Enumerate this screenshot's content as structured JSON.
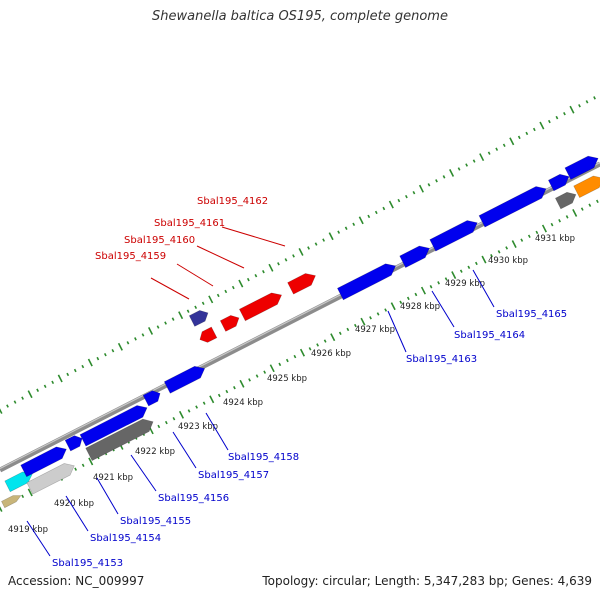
{
  "title": "Shewanella baltica OS195, complete genome",
  "footer": {
    "accession": "Accession: NC_009997",
    "summary": "Topology: circular; Length: 5,347,283 bp; Genes: 4,639"
  },
  "colors": {
    "background": "#ffffff",
    "backbone": "#8c8c8c",
    "tick": "#2e8b2e",
    "forward_gene": "#0000ee",
    "highlight_gene": "#ee0000",
    "pseudo_gene": "#666666",
    "light_gene": "#cccccc",
    "orange_gene": "#ff8c00",
    "cyan_gene": "#00e5ee",
    "tan_gene": "#c8b57a",
    "navy_gene": "#333399",
    "label_red": "#cc0000",
    "label_blue": "#0000cc"
  },
  "scale_labels": [
    "4919 kbp",
    "4920 kbp",
    "4921 kbp",
    "4922 kbp",
    "4923 kbp",
    "4924 kbp",
    "4925 kbp",
    "4926 kbp",
    "4927 kbp",
    "4928 kbp",
    "4929 kbp",
    "4930 kbp",
    "4931 kbp"
  ],
  "top_labels": [
    "Sbal195_4162",
    "Sbal195_4161",
    "Sbal195_4160",
    "Sbal195_4159"
  ],
  "bottom_labels": [
    "Sbal195_4165",
    "Sbal195_4164",
    "Sbal195_4163",
    "Sbal195_4158",
    "Sbal195_4157",
    "Sbal195_4156",
    "Sbal195_4155",
    "Sbal195_4154",
    "Sbal195_4153"
  ]
}
